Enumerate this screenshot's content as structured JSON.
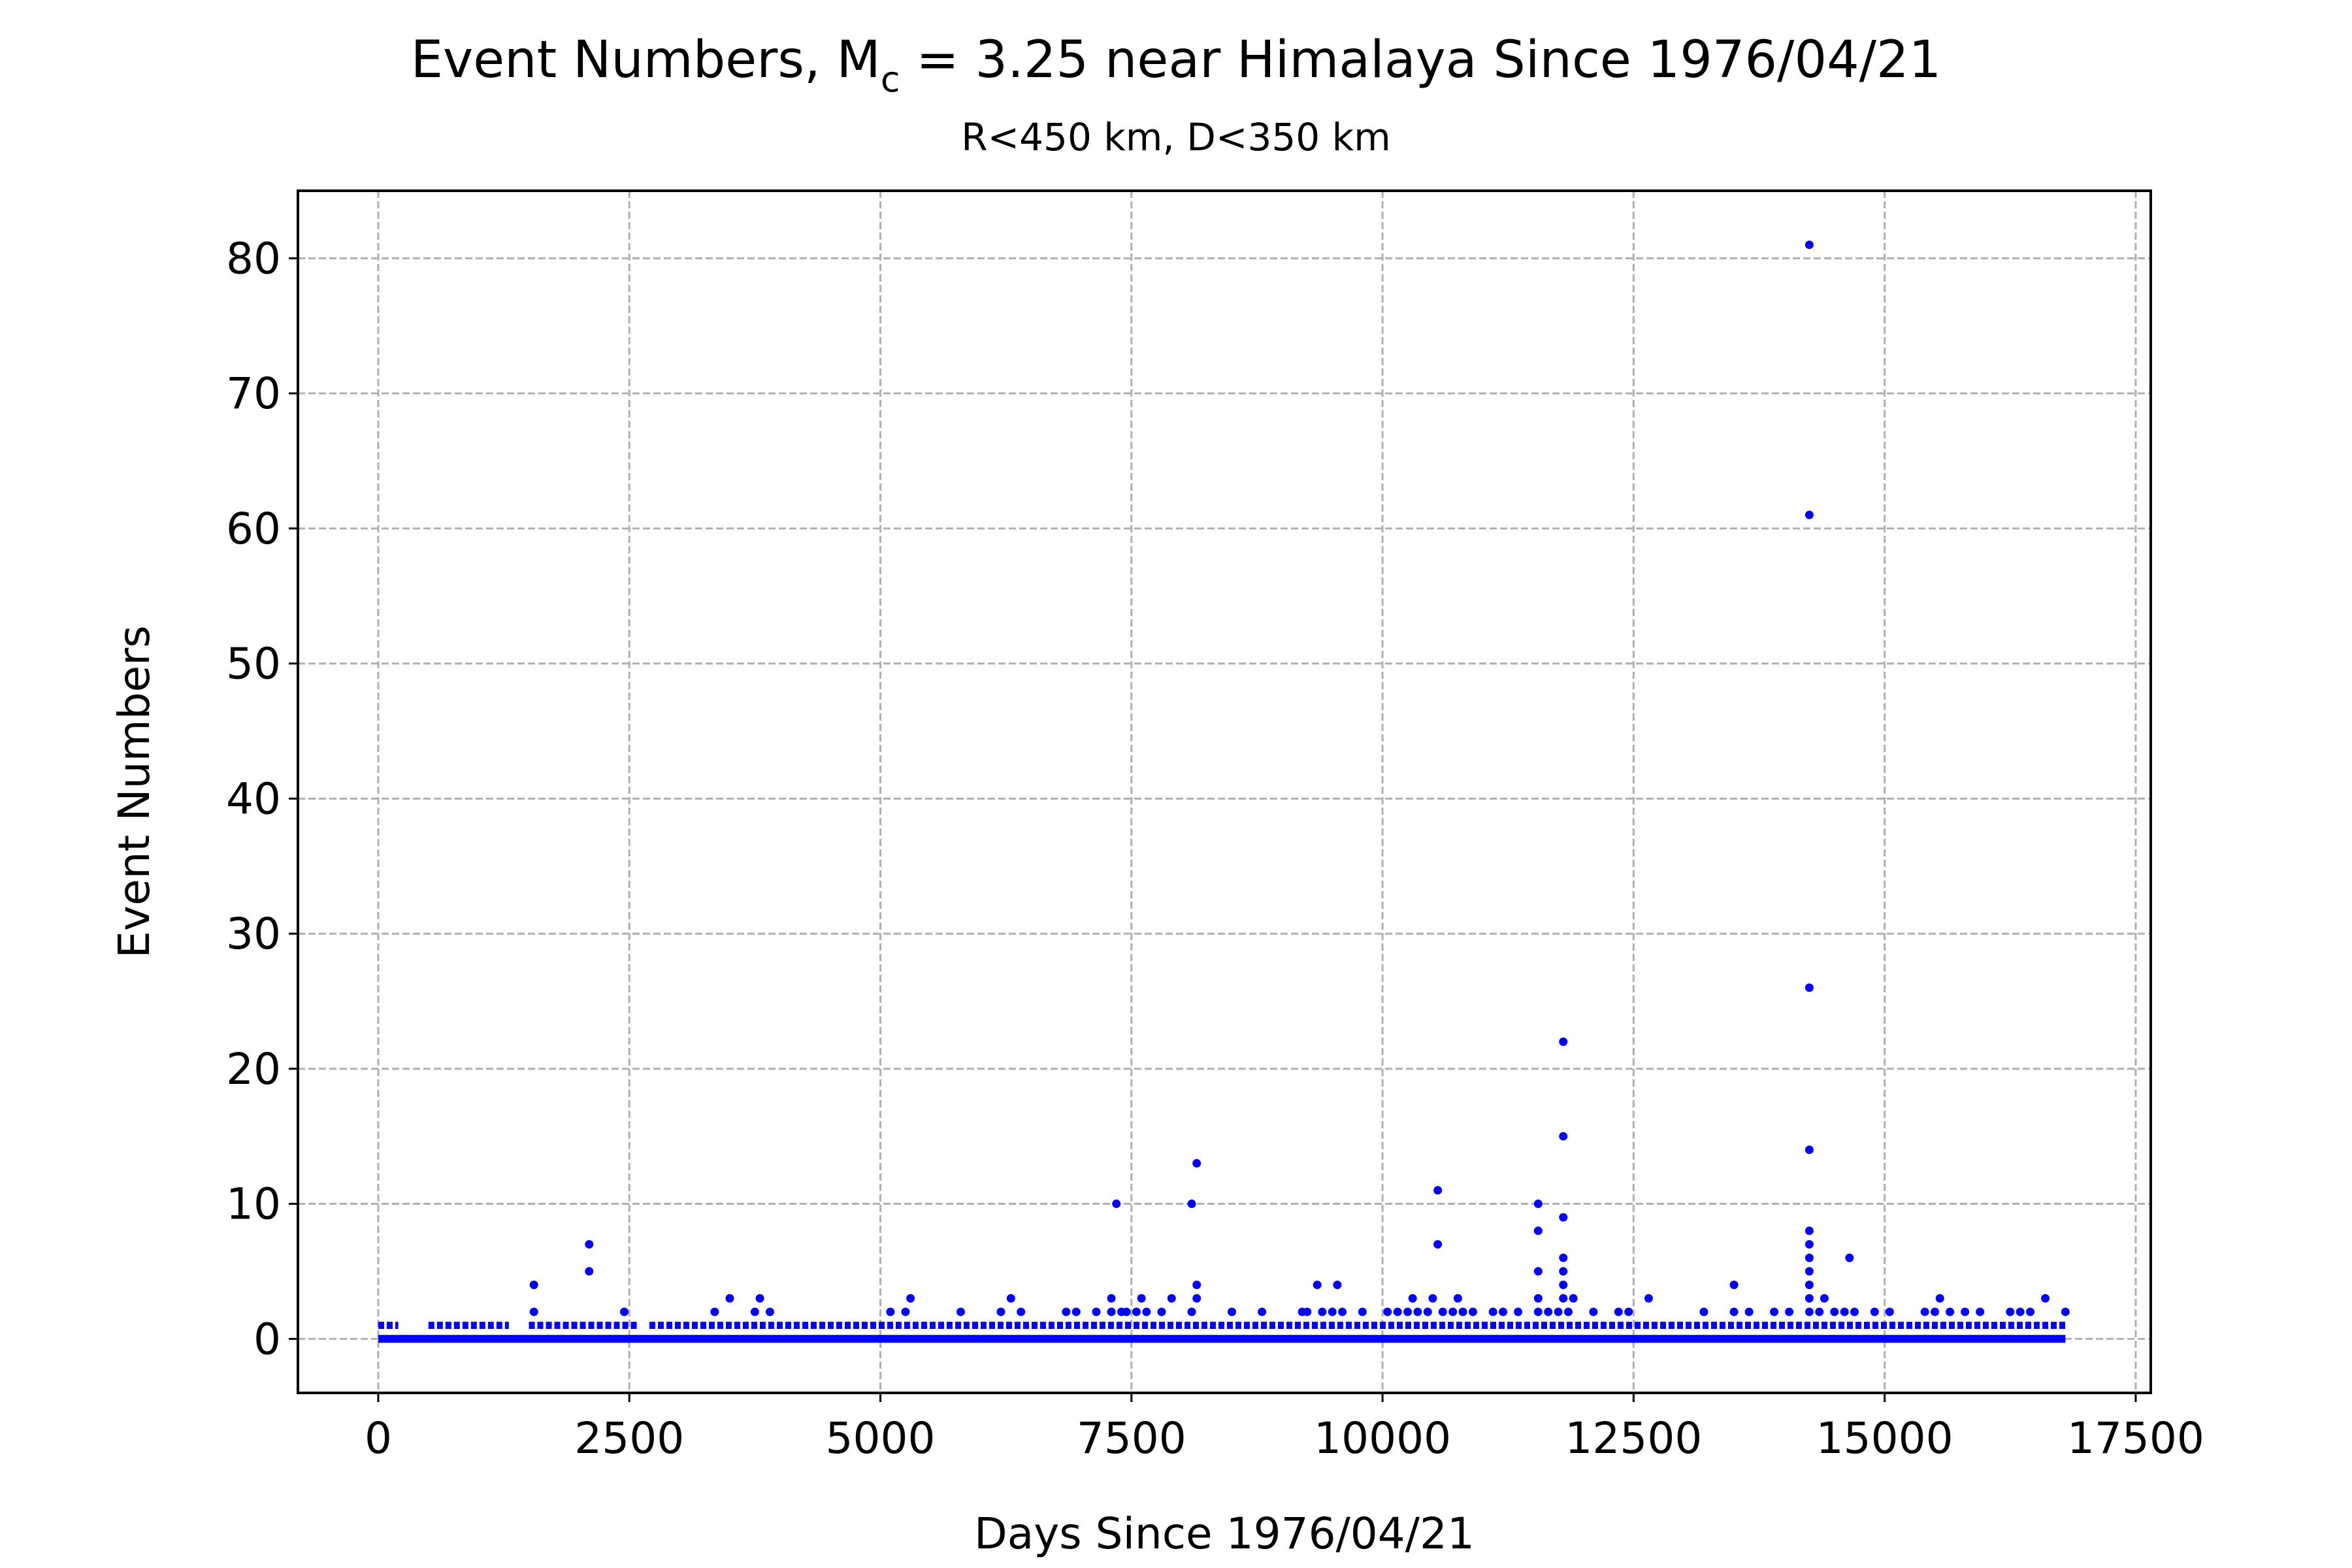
{
  "chart_data": {
    "type": "scatter",
    "title": "Event Numbers, M",
    "title_subscript": "c",
    "title_rest": " = 3.25 near Himalaya Since 1976/04/21",
    "subtitle": "R<450 km, D<350 km",
    "xlabel": "Days Since 1976/04/21",
    "ylabel": "Event Numbers",
    "xlim": [
      -800,
      17650
    ],
    "ylim": [
      -4,
      85
    ],
    "xticks": [
      0,
      2500,
      5000,
      7500,
      10000,
      12500,
      15000,
      17500
    ],
    "xtick_labels": [
      "0",
      "2500",
      "5000",
      "7500",
      "10000",
      "12500",
      "15000",
      "17500"
    ],
    "yticks": [
      0,
      10,
      20,
      30,
      40,
      50,
      60,
      70,
      80
    ],
    "ytick_labels": [
      "0",
      "10",
      "20",
      "30",
      "40",
      "50",
      "60",
      "70",
      "80"
    ],
    "grid": true,
    "marker_color": "#0000ff",
    "baseline": {
      "x_start": 0,
      "x_end": 16800,
      "y": 0
    },
    "ones_ranges": [
      [
        0,
        200
      ],
      [
        500,
        1300
      ],
      [
        1500,
        2600
      ],
      [
        2700,
        16800
      ]
    ],
    "points": [
      [
        1550,
        2
      ],
      [
        1550,
        4
      ],
      [
        2100,
        5
      ],
      [
        2100,
        7
      ],
      [
        2450,
        2
      ],
      [
        3350,
        2
      ],
      [
        3500,
        3
      ],
      [
        3750,
        2
      ],
      [
        3800,
        3
      ],
      [
        3900,
        2
      ],
      [
        5100,
        2
      ],
      [
        5250,
        2
      ],
      [
        5300,
        3
      ],
      [
        5800,
        2
      ],
      [
        6200,
        2
      ],
      [
        6300,
        3
      ],
      [
        6400,
        2
      ],
      [
        6850,
        2
      ],
      [
        6950,
        2
      ],
      [
        7150,
        2
      ],
      [
        7300,
        2
      ],
      [
        7300,
        3
      ],
      [
        7350,
        10
      ],
      [
        7400,
        2
      ],
      [
        7450,
        2
      ],
      [
        7550,
        2
      ],
      [
        7600,
        3
      ],
      [
        7650,
        2
      ],
      [
        7800,
        2
      ],
      [
        7900,
        3
      ],
      [
        8100,
        10
      ],
      [
        8100,
        2
      ],
      [
        8150,
        3
      ],
      [
        8150,
        4
      ],
      [
        8150,
        13
      ],
      [
        8500,
        2
      ],
      [
        8800,
        2
      ],
      [
        9200,
        2
      ],
      [
        9250,
        2
      ],
      [
        9350,
        4
      ],
      [
        9400,
        2
      ],
      [
        9500,
        2
      ],
      [
        9550,
        4
      ],
      [
        9600,
        2
      ],
      [
        9800,
        2
      ],
      [
        10050,
        2
      ],
      [
        10150,
        2
      ],
      [
        10250,
        2
      ],
      [
        10300,
        3
      ],
      [
        10350,
        2
      ],
      [
        10450,
        2
      ],
      [
        10500,
        3
      ],
      [
        10550,
        7
      ],
      [
        10550,
        11
      ],
      [
        10600,
        2
      ],
      [
        10700,
        2
      ],
      [
        10750,
        3
      ],
      [
        10800,
        2
      ],
      [
        10900,
        2
      ],
      [
        11100,
        2
      ],
      [
        11200,
        2
      ],
      [
        11350,
        2
      ],
      [
        11550,
        2
      ],
      [
        11550,
        3
      ],
      [
        11550,
        5
      ],
      [
        11550,
        8
      ],
      [
        11550,
        10
      ],
      [
        11650,
        2
      ],
      [
        11750,
        2
      ],
      [
        11800,
        3
      ],
      [
        11800,
        4
      ],
      [
        11800,
        5
      ],
      [
        11800,
        6
      ],
      [
        11800,
        9
      ],
      [
        11800,
        15
      ],
      [
        11800,
        22
      ],
      [
        11850,
        2
      ],
      [
        11900,
        3
      ],
      [
        12100,
        2
      ],
      [
        12350,
        2
      ],
      [
        12450,
        2
      ],
      [
        12650,
        3
      ],
      [
        13200,
        2
      ],
      [
        13500,
        2
      ],
      [
        13500,
        4
      ],
      [
        13650,
        2
      ],
      [
        13900,
        2
      ],
      [
        14050,
        2
      ],
      [
        14250,
        2
      ],
      [
        14250,
        3
      ],
      [
        14250,
        4
      ],
      [
        14250,
        5
      ],
      [
        14250,
        6
      ],
      [
        14250,
        7
      ],
      [
        14250,
        8
      ],
      [
        14250,
        14
      ],
      [
        14250,
        26
      ],
      [
        14250,
        61
      ],
      [
        14250,
        81
      ],
      [
        14350,
        2
      ],
      [
        14400,
        3
      ],
      [
        14500,
        2
      ],
      [
        14600,
        2
      ],
      [
        14650,
        6
      ],
      [
        14700,
        2
      ],
      [
        14900,
        2
      ],
      [
        15050,
        2
      ],
      [
        15400,
        2
      ],
      [
        15500,
        2
      ],
      [
        15550,
        3
      ],
      [
        15650,
        2
      ],
      [
        15800,
        2
      ],
      [
        15950,
        2
      ],
      [
        16250,
        2
      ],
      [
        16350,
        2
      ],
      [
        16450,
        2
      ],
      [
        16600,
        3
      ],
      [
        16800,
        2
      ]
    ]
  }
}
